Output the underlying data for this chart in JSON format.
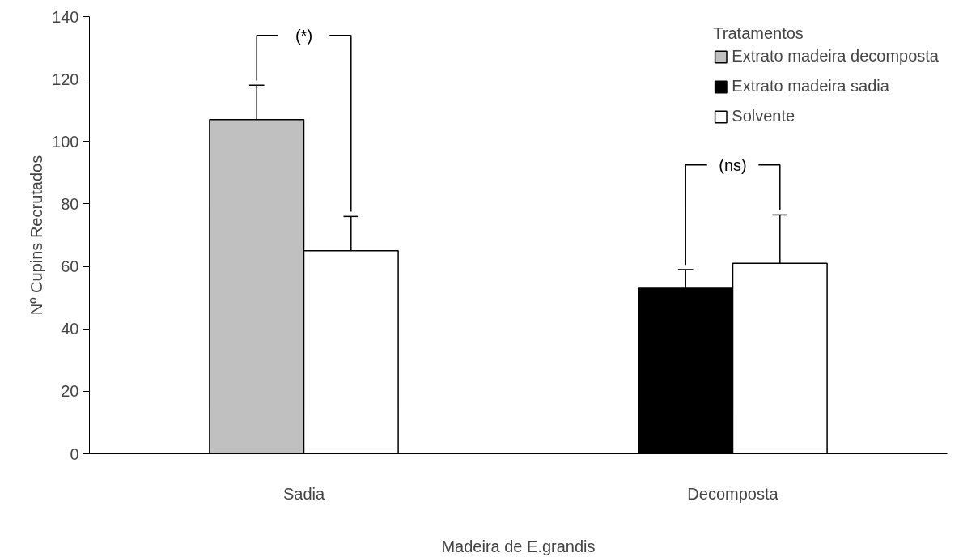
{
  "chart_data": {
    "type": "bar",
    "xlabel": "Madeira de E.grandis",
    "ylabel": "Nº Cupins Recrutados",
    "legend_title": "Tratamentos",
    "categories": [
      "Sadia",
      "Decomposta"
    ],
    "series": [
      {
        "name": "Extrato madeira decomposta",
        "color": "#c0c0c0",
        "values": [
          107,
          null
        ],
        "errors": [
          [
            107,
            118
          ],
          null
        ]
      },
      {
        "name": "Extrato madeira sadia",
        "color": "#000000",
        "values": [
          null,
          53
        ],
        "errors": [
          null,
          [
            53,
            59
          ]
        ]
      },
      {
        "name": "Solvente",
        "color": "#ffffff",
        "values": [
          65,
          61
        ],
        "errors": [
          [
            65,
            76
          ],
          [
            61,
            76.5
          ]
        ]
      }
    ],
    "ylim": [
      0,
      140
    ],
    "yticks": [
      0,
      20,
      40,
      60,
      80,
      100,
      120,
      140
    ],
    "grid": false,
    "legend": "top right",
    "annotations": [
      "(*)",
      "(ns)"
    ]
  }
}
